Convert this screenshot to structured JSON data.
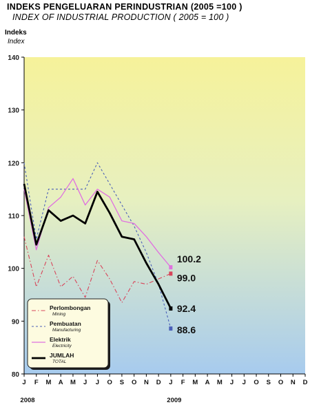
{
  "title": "INDEKS PENGELUARAN PERINDUSTRIAN (2005 =100 )",
  "subtitle": "INDEX OF INDUSTRIAL PRODUCTION ( 2005 = 100 )",
  "ylabel": "Indeks",
  "ylabel_en": "Index",
  "colors": {
    "total": "#000000",
    "electricity": "#e070e0",
    "manufacturing": "#4a5fb8",
    "mining": "#d8455a",
    "bg_top": "#f6f29a",
    "bg_bottom": "#a7cbee"
  },
  "chart_data": {
    "type": "line",
    "ylim": [
      80,
      140
    ],
    "yticks": [
      80,
      90,
      100,
      110,
      120,
      130,
      140
    ],
    "month_labels": [
      "J",
      "F",
      "M",
      "A",
      "M",
      "J",
      "J",
      "O",
      "S",
      "O",
      "N",
      "D",
      "J",
      "F",
      "M",
      "A",
      "M",
      "J",
      "J",
      "O",
      "S",
      "O",
      "N",
      "D"
    ],
    "year_labels": [
      {
        "label": "2008",
        "month_index": 0
      },
      {
        "label": "2009",
        "month_index": 12
      }
    ],
    "grid": false,
    "legend_position": "bottom-left",
    "series": [
      {
        "key": "mining",
        "name": "Perlombongan",
        "name_en": "Mining",
        "style": "dashdot",
        "values": [
          106,
          96.5,
          102.5,
          96.5,
          98.5,
          94.5,
          101.5,
          98,
          93.5,
          97.5,
          97,
          98,
          99,
          null,
          null,
          null,
          null,
          null,
          null,
          null,
          null,
          null,
          null,
          null
        ]
      },
      {
        "key": "manufacturing",
        "name": "Pembuatan",
        "name_en": "Manufacturing",
        "style": "dotted",
        "values": [
          120,
          105.5,
          115,
          115,
          115,
          115,
          120,
          116,
          112,
          108,
          103,
          97,
          88.6,
          null,
          null,
          null,
          null,
          null,
          null,
          null,
          null,
          null,
          null,
          null
        ]
      },
      {
        "key": "electricity",
        "name": "Elektrik",
        "name_en": "Electricity",
        "style": "solid",
        "values": [
          115,
          103.5,
          111.5,
          113.5,
          117,
          112,
          115,
          113.5,
          109,
          108.5,
          106,
          103,
          100.2,
          null,
          null,
          null,
          null,
          null,
          null,
          null,
          null,
          null,
          null,
          null
        ]
      },
      {
        "key": "total",
        "name": "JUMLAH",
        "name_en": "TOTAL",
        "style": "thick",
        "values": [
          116,
          104.5,
          111,
          109,
          110,
          108.5,
          114.5,
          110.5,
          106,
          105.5,
          101,
          97,
          92.4,
          null,
          null,
          null,
          null,
          null,
          null,
          null,
          null,
          null,
          null,
          null
        ]
      }
    ],
    "end_labels": [
      {
        "series": "electricity",
        "text": "100.2",
        "value": 100.2
      },
      {
        "series": "mining",
        "text": "99.0",
        "value": 99
      },
      {
        "series": "total",
        "text": "92.4",
        "value": 92.4
      },
      {
        "series": "manufacturing",
        "text": "88.6",
        "value": 88.6
      }
    ]
  }
}
